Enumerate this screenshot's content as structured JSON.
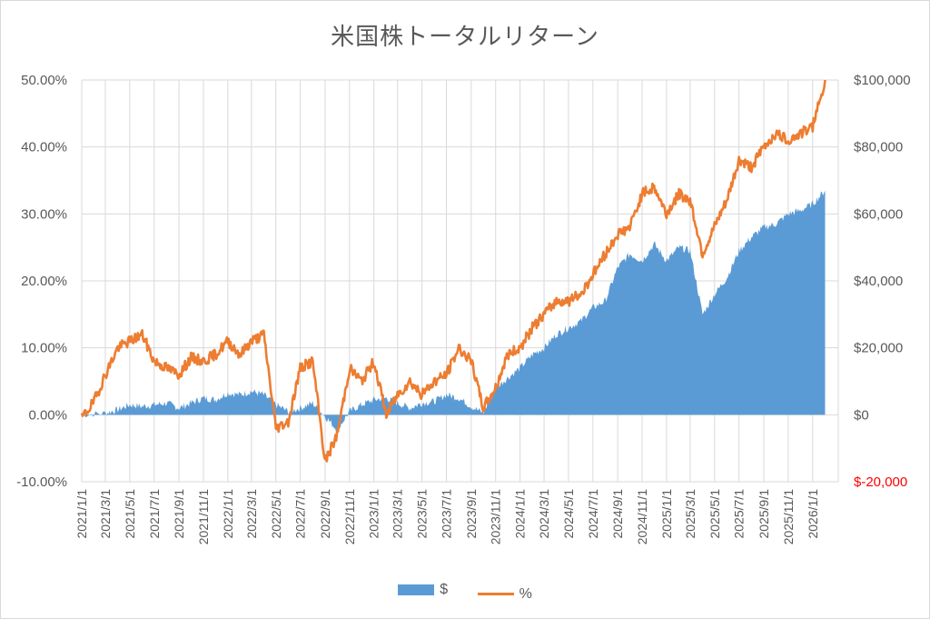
{
  "chart_data": {
    "type": "area",
    "title": "米国株トータルリターン",
    "x_tick_labels": [
      "2021/1/1",
      "2021/3/1",
      "2021/5/1",
      "2021/7/1",
      "2021/9/1",
      "2021/11/1",
      "2022/1/1",
      "2022/3/1",
      "2022/5/1",
      "2022/7/1",
      "2022/9/1",
      "2022/11/1",
      "2023/1/1",
      "2023/3/1",
      "2023/5/1",
      "2023/7/1",
      "2023/9/1",
      "2023/11/1",
      "2024/1/1",
      "2024/3/1",
      "2024/5/1",
      "2024/7/1",
      "2024/9/1",
      "2024/11/1",
      "2025/1/1",
      "2025/3/1",
      "2025/5/1",
      "2025/7/1",
      "2025/9/1",
      "2025/11/1",
      "2026/1/1"
    ],
    "y_left": {
      "ticks": [
        "-10.00%",
        "0.00%",
        "10.00%",
        "20.00%",
        "30.00%",
        "40.00%",
        "50.00%"
      ],
      "range": [
        -10,
        50
      ]
    },
    "y_right": {
      "ticks": [
        "$-20,000",
        "$0",
        "$20,000",
        "$40,000",
        "$60,000",
        "$80,000",
        "$100,000"
      ],
      "range": [
        -20000,
        100000
      ],
      "negative_color": "#ff0000"
    },
    "series": [
      {
        "name": "$",
        "kind": "area",
        "axis": "right",
        "color": "#5b9bd5",
        "x": [
          "2021/1/1",
          "2021/3/1",
          "2021/4/1",
          "2021/5/1",
          "2021/6/1",
          "2021/7/1",
          "2021/8/1",
          "2021/9/1",
          "2021/10/1",
          "2021/11/1",
          "2021/12/1",
          "2022/1/1",
          "2022/2/1",
          "2022/3/1",
          "2022/4/1",
          "2022/5/1",
          "2022/6/1",
          "2022/7/1",
          "2022/8/1",
          "2022/9/1",
          "2022/10/1",
          "2022/11/1",
          "2022/12/1",
          "2023/1/1",
          "2023/2/1",
          "2023/3/1",
          "2023/4/1",
          "2023/5/1",
          "2023/6/1",
          "2023/7/1",
          "2023/8/1",
          "2023/9/1",
          "2023/10/1",
          "2023/11/1",
          "2023/12/1",
          "2024/1/1",
          "2024/2/1",
          "2024/3/1",
          "2024/4/1",
          "2024/5/1",
          "2024/6/1",
          "2024/7/1",
          "2024/8/1",
          "2024/9/1",
          "2024/10/1",
          "2024/11/1",
          "2024/12/1",
          "2025/1/1",
          "2025/2/1",
          "2025/3/1",
          "2025/4/1",
          "2025/5/1",
          "2025/6/1",
          "2025/7/1",
          "2025/8/1",
          "2025/9/1",
          "2025/10/1",
          "2025/11/1",
          "2025/12/1",
          "2026/1/1",
          "2026/2/1"
        ],
        "values": [
          0,
          500,
          1500,
          3000,
          2500,
          3000,
          3500,
          2000,
          3500,
          5000,
          4500,
          6500,
          6000,
          7000,
          6000,
          3000,
          1000,
          2000,
          3500,
          -500,
          -4500,
          1000,
          3000,
          4500,
          5000,
          3500,
          2000,
          3500,
          4000,
          6000,
          5000,
          2500,
          500,
          8000,
          11000,
          14000,
          18000,
          20000,
          24000,
          26000,
          28000,
          32000,
          34000,
          44000,
          48000,
          46000,
          51000,
          46000,
          50000,
          49000,
          30000,
          36000,
          41000,
          49000,
          53000,
          56000,
          57000,
          60000,
          61000,
          63000,
          67000
        ]
      },
      {
        "name": "%",
        "kind": "line",
        "axis": "left",
        "color": "#ed7d31",
        "x": [
          "2021/1/1",
          "2021/2/1",
          "2021/3/1",
          "2021/4/1",
          "2021/5/1",
          "2021/6/1",
          "2021/7/1",
          "2021/8/1",
          "2021/9/1",
          "2021/10/1",
          "2021/11/1",
          "2021/12/1",
          "2022/1/1",
          "2022/2/1",
          "2022/3/1",
          "2022/4/1",
          "2022/5/1",
          "2022/6/1",
          "2022/7/1",
          "2022/8/1",
          "2022/9/1",
          "2022/10/1",
          "2022/11/1",
          "2022/12/1",
          "2023/1/1",
          "2023/2/1",
          "2023/3/1",
          "2023/4/1",
          "2023/5/1",
          "2023/6/1",
          "2023/7/1",
          "2023/8/1",
          "2023/9/1",
          "2023/10/1",
          "2023/11/1",
          "2023/12/1",
          "2024/1/1",
          "2024/2/1",
          "2024/3/1",
          "2024/4/1",
          "2024/5/1",
          "2024/6/1",
          "2024/7/1",
          "2024/8/1",
          "2024/9/1",
          "2024/10/1",
          "2024/11/1",
          "2024/12/1",
          "2025/1/1",
          "2025/2/1",
          "2025/3/1",
          "2025/4/1",
          "2025/5/1",
          "2025/6/1",
          "2025/7/1",
          "2025/8/1",
          "2025/9/1",
          "2025/10/1",
          "2025/11/1",
          "2025/12/1",
          "2026/1/1",
          "2026/2/1"
        ],
        "values": [
          -0.5,
          2,
          6,
          10,
          11,
          12,
          8,
          7,
          6,
          8.5,
          8,
          9,
          11,
          9,
          11,
          12,
          -2,
          -1,
          7,
          8,
          -7,
          -3,
          7,
          5,
          8,
          0,
          3,
          5,
          3,
          5,
          6,
          10,
          8,
          1,
          4,
          9,
          10,
          13,
          15,
          17,
          17,
          18,
          21,
          24,
          27,
          28,
          33,
          34,
          30,
          33,
          32,
          24,
          28,
          32,
          38,
          37,
          40,
          42,
          41,
          42,
          43,
          50
        ]
      }
    ]
  },
  "legend": {
    "area_label": "$",
    "line_label": "%"
  }
}
